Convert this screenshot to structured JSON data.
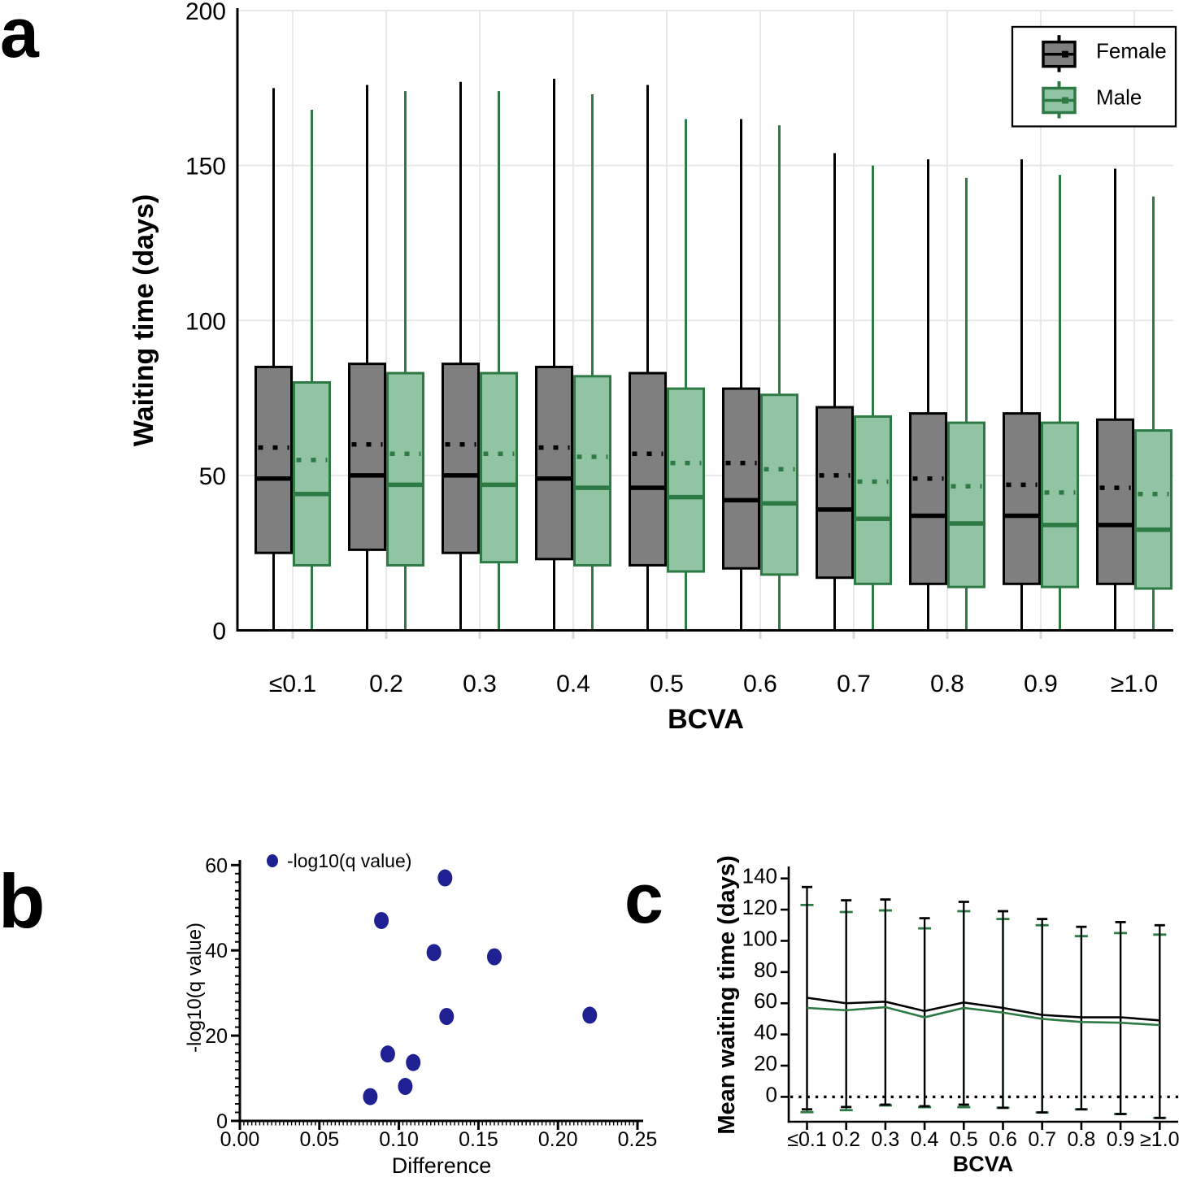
{
  "panels": {
    "a": {
      "label": "a"
    },
    "b": {
      "label": "b"
    },
    "c": {
      "label": "c"
    }
  },
  "colors": {
    "female_fill": "#7f7f7f",
    "female_edge": "#000000",
    "male_fill": "#90c4a2",
    "male_edge": "#2d7a45",
    "scatter_dot": "#1f2091",
    "grid": "#e8e8e8",
    "grid_tick": "#d9d9d9"
  },
  "chart_data": [
    {
      "id": "panel-a-boxplot",
      "type": "box",
      "xlabel": "BCVA",
      "ylabel": "Waiting time (days)",
      "ylim": [
        0,
        200
      ],
      "yticks": [
        0,
        50,
        100,
        150,
        200
      ],
      "categories": [
        "≤0.1",
        "0.2",
        "0.3",
        "0.4",
        "0.5",
        "0.6",
        "0.7",
        "0.8",
        "0.9",
        "≥1.0"
      ],
      "legend": [
        {
          "label": "Female"
        },
        {
          "label": "Male"
        }
      ],
      "series": [
        {
          "name": "Female",
          "boxes": [
            {
              "low": 0,
              "q1": 25,
              "median": 49,
              "mean": 59,
              "q3": 85,
              "high": 175
            },
            {
              "low": 0,
              "q1": 26,
              "median": 50,
              "mean": 60,
              "q3": 86,
              "high": 176
            },
            {
              "low": 0,
              "q1": 25,
              "median": 50,
              "mean": 60,
              "q3": 86,
              "high": 177
            },
            {
              "low": 0,
              "q1": 23,
              "median": 49,
              "mean": 59,
              "q3": 85,
              "high": 178
            },
            {
              "low": 0,
              "q1": 21,
              "median": 46,
              "mean": 57,
              "q3": 83,
              "high": 176
            },
            {
              "low": 0,
              "q1": 20,
              "median": 42,
              "mean": 54,
              "q3": 78,
              "high": 165
            },
            {
              "low": 0,
              "q1": 17,
              "median": 39,
              "mean": 50,
              "q3": 72,
              "high": 154
            },
            {
              "low": 0,
              "q1": 15,
              "median": 37,
              "mean": 49,
              "q3": 70,
              "high": 152
            },
            {
              "low": 0,
              "q1": 15,
              "median": 37,
              "mean": 47,
              "q3": 70,
              "high": 152
            },
            {
              "low": 0,
              "q1": 15,
              "median": 34,
              "mean": 46,
              "q3": 68,
              "high": 149
            }
          ]
        },
        {
          "name": "Male",
          "boxes": [
            {
              "low": 0,
              "q1": 21,
              "median": 44,
              "mean": 55,
              "q3": 80,
              "high": 168
            },
            {
              "low": 0,
              "q1": 21,
              "median": 47,
              "mean": 57,
              "q3": 83,
              "high": 174
            },
            {
              "low": 0,
              "q1": 22,
              "median": 47,
              "mean": 57,
              "q3": 83,
              "high": 174
            },
            {
              "low": 0,
              "q1": 21,
              "median": 46,
              "mean": 56,
              "q3": 82,
              "high": 173
            },
            {
              "low": 0,
              "q1": 19,
              "median": 43,
              "mean": 54,
              "q3": 78,
              "high": 165
            },
            {
              "low": 0,
              "q1": 18,
              "median": 41,
              "mean": 52,
              "q3": 76,
              "high": 163
            },
            {
              "low": 0,
              "q1": 15,
              "median": 36,
              "mean": 48,
              "q3": 69,
              "high": 150
            },
            {
              "low": 0,
              "q1": 14,
              "median": 34.5,
              "mean": 46.5,
              "q3": 67,
              "high": 146
            },
            {
              "low": 0,
              "q1": 14,
              "median": 34,
              "mean": 44.5,
              "q3": 67,
              "high": 147
            },
            {
              "low": 0,
              "q1": 13.5,
              "median": 32.5,
              "mean": 44,
              "q3": 64.5,
              "high": 140
            }
          ]
        }
      ]
    },
    {
      "id": "panel-b-scatter",
      "type": "scatter",
      "xlabel": "Difference",
      "ylabel": "-log10(q value)",
      "legend_label": "-log10(q value)",
      "xlim": [
        0,
        0.25
      ],
      "xticks": [
        "0.00",
        "0.05",
        "0.10",
        "0.15",
        "0.20",
        "0.25"
      ],
      "ylim": [
        0,
        60
      ],
      "yticks": [
        0,
        20,
        40,
        60
      ],
      "points": [
        {
          "x": 0.129,
          "y": 57
        },
        {
          "x": 0.089,
          "y": 47
        },
        {
          "x": 0.122,
          "y": 39.5
        },
        {
          "x": 0.16,
          "y": 38.5
        },
        {
          "x": 0.13,
          "y": 24.5
        },
        {
          "x": 0.22,
          "y": 24.8
        },
        {
          "x": 0.093,
          "y": 15.7
        },
        {
          "x": 0.109,
          "y": 13.7
        },
        {
          "x": 0.104,
          "y": 8.1
        },
        {
          "x": 0.082,
          "y": 5.7
        }
      ]
    },
    {
      "id": "panel-c-line",
      "type": "line",
      "xlabel": "BCVA",
      "ylabel": "Mean waiting time (days)",
      "categories": [
        "≤0.1",
        "0.2",
        "0.3",
        "0.4",
        "0.5",
        "0.6",
        "0.7",
        "0.8",
        "0.9",
        "≥1.0"
      ],
      "ylim": [
        0,
        140
      ],
      "yticks": [
        0,
        20,
        40,
        60,
        80,
        100,
        120,
        140
      ],
      "zero_line": "dotted",
      "series": [
        {
          "name": "Female",
          "means": [
            63.5,
            60,
            61,
            55,
            60.5,
            57,
            52.5,
            51,
            51,
            49
          ],
          "err_high": [
            134.5,
            126,
            126.5,
            114.5,
            125,
            119,
            114,
            109,
            112,
            110
          ],
          "err_low": [
            -8,
            -6.5,
            -5,
            -6,
            -5,
            -7,
            -10,
            -8,
            -11,
            -13.5
          ]
        },
        {
          "name": "Male",
          "means": [
            57,
            55.5,
            57.5,
            51,
            57,
            54,
            50,
            48,
            47.5,
            46
          ],
          "err_high": [
            123,
            118.5,
            119.5,
            108,
            119,
            114,
            110,
            103,
            105,
            104
          ],
          "err_low": [
            -9.8,
            -8.5,
            -5.5,
            -6.6,
            -6.6,
            -7,
            -10,
            -8,
            -11,
            -13.5
          ]
        }
      ]
    }
  ]
}
